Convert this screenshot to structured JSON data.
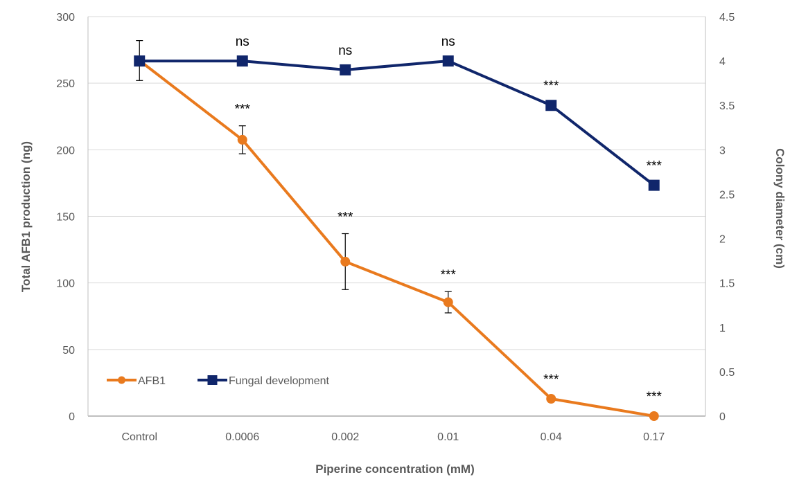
{
  "chart_data": {
    "type": "line",
    "categories": [
      "Control",
      "0.0006",
      "0.002",
      "0.01",
      "0.04",
      "0.17"
    ],
    "xlabel": "Piperine concentration (mM)",
    "ylabel": "Total AFB1 production (ng)",
    "y2label": "Colony diameter (cm)",
    "ylim": [
      0,
      300
    ],
    "yticks": [
      0,
      50,
      100,
      150,
      200,
      250,
      300
    ],
    "y2lim": [
      0,
      4.5
    ],
    "y2ticks": [
      0,
      0.5,
      1,
      1.5,
      2,
      2.5,
      3,
      3.5,
      4,
      4.5
    ],
    "grid": true,
    "legend_position": "bottom-left",
    "series": [
      {
        "name": "AFB1",
        "axis": "left",
        "color": "#E97A1E",
        "marker": "circle",
        "values": [
          267,
          207.5,
          116,
          85.5,
          13,
          0
        ],
        "errors": [
          15,
          10.5,
          21,
          8,
          0,
          0
        ],
        "annotations": [
          "",
          "***",
          "***",
          "***",
          "***",
          "***"
        ]
      },
      {
        "name": "Fungal development",
        "axis": "right",
        "color": "#10266B",
        "marker": "square",
        "values": [
          4,
          4,
          3.9,
          4,
          3.5,
          2.6
        ],
        "errors": [
          0,
          0,
          0,
          0,
          0,
          0
        ],
        "annotations": [
          "",
          "ns",
          "ns",
          "ns",
          "***",
          "***"
        ]
      }
    ]
  }
}
